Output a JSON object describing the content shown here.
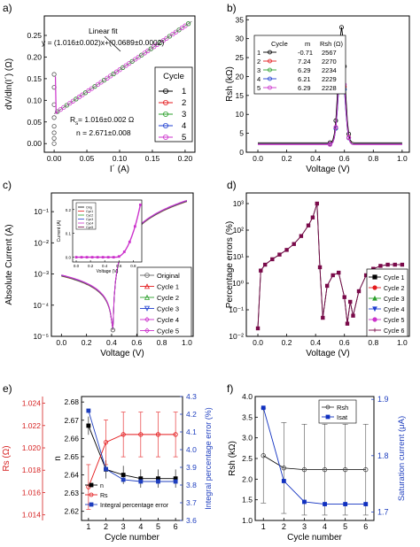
{
  "figure": {
    "panels": [
      "a)",
      "b)",
      "c)",
      "d)",
      "e)",
      "f)"
    ]
  },
  "colors": {
    "cycle1": "#000000",
    "cycle2": "#e41a1c",
    "cycle3": "#2ca02c",
    "cycle4": "#1f3fd0",
    "cycle5": "#cc33cc",
    "cycle6": "#7a0a4a",
    "rs_axis": "#d62020",
    "perr_axis": "#1f3fbf",
    "isat": "#1030c0",
    "original": "#666666"
  },
  "chart_data": [
    {
      "panel": "a)",
      "type": "scatter",
      "xlabel": "I´ (A)",
      "ylabel": "dV/dln(I´) (Ω)",
      "xlim": [
        -0.015,
        0.215
      ],
      "ylim": [
        -0.02,
        0.295
      ],
      "xticks": [
        "0.00",
        "0.05",
        "0.10",
        "0.15",
        "0.20"
      ],
      "yticks": [
        "0.00",
        "0.05",
        "0.10",
        "0.15",
        "0.20",
        "0.25"
      ],
      "legend_title": "Cycle",
      "legend": [
        "1",
        "2",
        "3",
        "4",
        "5"
      ],
      "annotations": {
        "fit_label": "Linear fit",
        "fit_eq": "y = (1.016±0.002)x+(0.0689±0.0002)",
        "rs": "R",
        "rs_sub": "s",
        "rs_val": " = 1.016±0.002 Ω",
        "n": "n = 2.671±0.008"
      },
      "fit": {
        "slope": 1.016,
        "intercept": 0.0689
      },
      "low_current_points": [
        {
          "x": 0.0,
          "y": 0.0
        },
        {
          "x": 0.0,
          "y": 0.012
        },
        {
          "x": 0.0,
          "y": 0.025
        },
        {
          "x": 0.0,
          "y": 0.04
        },
        {
          "x": 0.0,
          "y": 0.06
        },
        {
          "x": 0.0,
          "y": 0.09
        },
        {
          "x": 0.0,
          "y": 0.13
        },
        {
          "x": 0.0,
          "y": 0.16
        }
      ]
    },
    {
      "panel": "b)",
      "type": "line",
      "xlabel": "Voltage (V)",
      "ylabel": "Rsh (kΩ)",
      "xlim": [
        -0.08,
        1.05
      ],
      "ylim": [
        0,
        36
      ],
      "xticks": [
        "0.0",
        "0.2",
        "0.4",
        "0.6",
        "0.8",
        "1.0"
      ],
      "yticks": [
        "0",
        "5",
        "10",
        "15",
        "20",
        "25",
        "30",
        "35"
      ],
      "table_headers": [
        "Cycle",
        "m",
        "Rsh (Ω)"
      ],
      "table_rows": [
        [
          "1",
          "-0.71",
          "2567"
        ],
        [
          "2",
          "7.24",
          "2270"
        ],
        [
          "3",
          "6.29",
          "2234"
        ],
        [
          "4",
          "6.21",
          "2229"
        ],
        [
          "5",
          "6.29",
          "2228"
        ]
      ],
      "series": [
        {
          "cycle": "1",
          "baseline": 2.5,
          "peak": 33
        },
        {
          "cycle": "2",
          "baseline": 2.2,
          "peak": 25
        },
        {
          "cycle": "3",
          "baseline": 2.1,
          "peak": 24
        },
        {
          "cycle": "4",
          "baseline": 2.1,
          "peak": 24
        },
        {
          "cycle": "5",
          "baseline": 2.0,
          "peak": 26
        }
      ],
      "peak_x": 0.58
    },
    {
      "panel": "c)",
      "type": "line",
      "xlabel": "Voltage (V)",
      "ylabel": "Absolute Current (A)",
      "yscale": "log",
      "xlim": [
        -0.08,
        1.05
      ],
      "ylim_exp": [
        -5,
        -0.4
      ],
      "xticks": [
        "0.0",
        "0.2",
        "0.4",
        "0.6",
        "0.8",
        "1.0"
      ],
      "yticks": [
        "10⁻⁵",
        "10⁻⁴",
        "10⁻³",
        "10⁻²",
        "10⁻¹"
      ],
      "legend": [
        "Original",
        "Cycle 1",
        "Cycle 2",
        "Cycle 3",
        "Cycle 4",
        "Cycle 5"
      ],
      "dip_x": 0.41,
      "curve": {
        "i_low": 0.00085,
        "i_high": 0.21
      },
      "inset": {
        "xlabel": "Voltage (V)",
        "ylabel": "Current (A)",
        "xticks": [
          "0.0",
          "0.2",
          "0.4",
          "0.6",
          "0.8"
        ],
        "yticks": [
          "0.0",
          "0.1",
          "0.2"
        ],
        "legend": [
          "Orig",
          "Cyc1",
          "Cyc2",
          "Cyc3",
          "Cyc4",
          "Cyc5"
        ]
      }
    },
    {
      "panel": "d)",
      "type": "line",
      "xlabel": "Voltage (V)",
      "ylabel": "Percentage errors (%)",
      "yscale": "log",
      "xlim": [
        -0.08,
        1.05
      ],
      "ylim_exp": [
        -2,
        3.4
      ],
      "xticks": [
        "0.0",
        "0.2",
        "0.4",
        "0.6",
        "0.8",
        "1.0"
      ],
      "yticks": [
        "10⁻²",
        "10⁻¹",
        "10⁰",
        "10¹",
        "10²",
        "10³"
      ],
      "legend": [
        "Cycle 1",
        "Cycle 2",
        "Cycle 3",
        "Cycle 4",
        "Cycle 5",
        "Cycle 6"
      ],
      "points": [
        {
          "x": 0.0,
          "y": 0.02
        },
        {
          "x": 0.02,
          "y": 3
        },
        {
          "x": 0.05,
          "y": 5
        },
        {
          "x": 0.1,
          "y": 8
        },
        {
          "x": 0.15,
          "y": 12
        },
        {
          "x": 0.2,
          "y": 18
        },
        {
          "x": 0.25,
          "y": 30
        },
        {
          "x": 0.3,
          "y": 60
        },
        {
          "x": 0.35,
          "y": 150
        },
        {
          "x": 0.38,
          "y": 300
        },
        {
          "x": 0.41,
          "y": 1000
        },
        {
          "x": 0.43,
          "y": 4
        },
        {
          "x": 0.45,
          "y": 0.05
        },
        {
          "x": 0.48,
          "y": 0.8
        },
        {
          "x": 0.52,
          "y": 2
        },
        {
          "x": 0.56,
          "y": 2.5
        },
        {
          "x": 0.6,
          "y": 0.3
        },
        {
          "x": 0.62,
          "y": 0.03
        },
        {
          "x": 0.64,
          "y": 0.2
        },
        {
          "x": 0.66,
          "y": 0.06
        },
        {
          "x": 0.7,
          "y": 0.5
        },
        {
          "x": 0.75,
          "y": 2
        },
        {
          "x": 0.8,
          "y": 3.5
        },
        {
          "x": 0.85,
          "y": 4.5
        },
        {
          "x": 0.9,
          "y": 5
        },
        {
          "x": 0.95,
          "y": 5
        },
        {
          "x": 1.0,
          "y": 5
        }
      ]
    },
    {
      "panel": "e)",
      "type": "line",
      "xlabel": "Cycle number",
      "ylabel_left_outer": "Rs (Ω)",
      "ylabel_left": "n",
      "ylabel_right": "Integral percentage error (%)",
      "categories": [
        1,
        2,
        3,
        4,
        5,
        6
      ],
      "xticks": [
        "1",
        "2",
        "3",
        "4",
        "5",
        "6"
      ],
      "rs_ticks": [
        "1.014",
        "1.016",
        "1.018",
        "1.020",
        "1.022",
        "1.024"
      ],
      "n_ticks": [
        "2.62",
        "2.63",
        "2.64",
        "2.65",
        "2.66",
        "2.67",
        "2.68"
      ],
      "perr_ticks": [
        "3.6",
        "3.7",
        "3.8",
        "3.9",
        "4.0",
        "4.1",
        "4.2",
        "4.3"
      ],
      "legend": [
        "n",
        "Rs",
        "Integral percentage error"
      ],
      "series": [
        {
          "name": "n",
          "values": [
            2.667,
            2.643,
            2.64,
            2.638,
            2.638,
            2.638
          ],
          "err": [
            0.005,
            0.005,
            0.005,
            0.005,
            0.005,
            0.005
          ]
        },
        {
          "name": "Rs",
          "values": [
            1.0165,
            1.0205,
            1.0212,
            1.0212,
            1.0212,
            1.0212
          ],
          "err": [
            0.002,
            0.002,
            0.002,
            0.002,
            0.002,
            0.002
          ]
        },
        {
          "name": "Integral percentage error",
          "values": [
            4.22,
            3.89,
            3.83,
            3.82,
            3.82,
            3.82
          ]
        }
      ]
    },
    {
      "panel": "f)",
      "type": "line",
      "xlabel": "Cycle number",
      "ylabel_left": "Rsh (kΩ)",
      "ylabel_right": "Saturation current (μA)",
      "categories": [
        1,
        2,
        3,
        4,
        5,
        6
      ],
      "xticks": [
        "1",
        "2",
        "3",
        "4",
        "5",
        "6"
      ],
      "rsh_ticks": [
        "1.0",
        "1.5",
        "2.0",
        "2.5",
        "3.0",
        "3.5",
        "4.0"
      ],
      "isat_ticks": [
        "1.7",
        "1.8",
        "1.9"
      ],
      "legend": [
        "Rsh",
        "Isat"
      ],
      "series": [
        {
          "name": "Rsh",
          "values": [
            2.57,
            2.27,
            2.23,
            2.23,
            2.23,
            2.23
          ],
          "err": [
            1.15,
            1.1,
            1.1,
            1.1,
            1.1,
            1.1
          ]
        },
        {
          "name": "Isat",
          "values": [
            1.885,
            1.755,
            1.718,
            1.714,
            1.714,
            1.714
          ]
        }
      ]
    }
  ]
}
